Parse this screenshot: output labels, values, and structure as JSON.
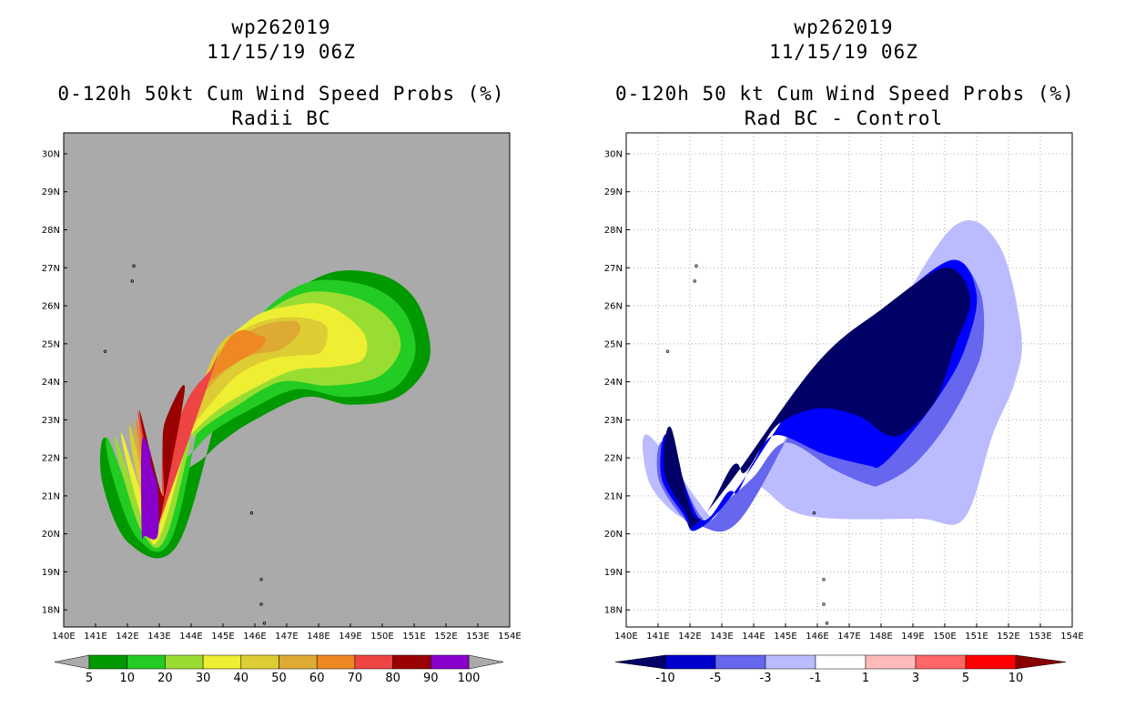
{
  "chart_data": [
    {
      "type": "filled-contour-map",
      "storm_id": "wp262019",
      "datetime": "11/15/19 06Z",
      "title": "0-120h 50kt Cum Wind Speed Probs (%)",
      "subtitle": "Radii BC",
      "x_ticks": [
        "140E",
        "141E",
        "142E",
        "143E",
        "144E",
        "145E",
        "146E",
        "147E",
        "148E",
        "149E",
        "150E",
        "151E",
        "152E",
        "153E",
        "154E"
      ],
      "y_ticks": [
        "18N",
        "19N",
        "20N",
        "21N",
        "22N",
        "23N",
        "24N",
        "25N",
        "26N",
        "27N",
        "28N",
        "29N",
        "30N"
      ],
      "xlim": [
        140,
        154
      ],
      "ylim": [
        17.55,
        30.55
      ],
      "grid": false,
      "background": "#aaaaaa",
      "colorbar": {
        "labels": [
          "5",
          "10",
          "20",
          "30",
          "40",
          "50",
          "60",
          "70",
          "80",
          "90",
          "100"
        ],
        "colors": [
          "#009900",
          "#22cc22",
          "#99dd33",
          "#eeee33",
          "#ddcc33",
          "#ddaa33",
          "#ee8822",
          "#ee4444",
          "#990000",
          "#8800cc"
        ],
        "under_color": "#aaaaaa",
        "over_color": "#aaaaaa"
      },
      "levels": [
        {
          "value": 5,
          "color": "#009900",
          "lon_path": [
            141.35,
            141.2,
            142.05,
            143.6,
            145.2,
            146.8,
            148.3,
            149.8,
            150.8,
            151.35,
            151.45,
            150.5,
            149.0,
            147.6,
            146.0,
            145.0,
            144.4,
            143.7,
            143.2,
            142.4
          ],
          "lat_path": [
            22.5,
            21.4,
            19.75,
            19.75,
            24.1,
            26.0,
            26.85,
            26.85,
            26.4,
            25.6,
            24.5,
            23.6,
            23.4,
            23.6,
            23.0,
            22.45,
            22.0,
            21.5,
            20.3,
            20.1
          ]
        },
        {
          "value": 10,
          "color": "#22cc22",
          "lon_path": [
            141.4,
            141.5,
            142.3,
            143.4,
            144.6,
            146.1,
            147.6,
            149.2,
            150.3,
            150.9,
            151.0,
            150.3,
            148.8,
            147.3,
            145.7,
            144.7,
            144.1,
            143.5,
            143.1,
            142.5
          ],
          "lat_path": [
            22.5,
            21.6,
            19.9,
            19.9,
            24.0,
            25.7,
            26.6,
            26.6,
            26.2,
            25.5,
            24.6,
            23.8,
            23.6,
            23.8,
            23.2,
            22.7,
            22.2,
            21.6,
            20.3,
            20.2
          ]
        },
        {
          "value": 20,
          "color": "#99dd33",
          "lon_path": [
            141.65,
            141.8,
            142.5,
            143.25,
            144.5,
            145.9,
            147.4,
            148.8,
            149.9,
            150.5,
            150.5,
            149.8,
            148.3,
            146.8,
            145.3,
            144.4,
            143.8,
            143.3,
            143.0,
            142.6
          ],
          "lat_path": [
            22.5,
            21.7,
            20.0,
            20.0,
            24.0,
            25.5,
            26.3,
            26.3,
            25.9,
            25.3,
            24.7,
            24.1,
            23.9,
            24.0,
            23.3,
            22.8,
            22.3,
            21.8,
            20.4,
            20.3
          ]
        },
        {
          "value": 30,
          "color": "#eeee33",
          "lon_path": [
            141.85,
            142.0,
            142.6,
            143.1,
            144.5,
            145.8,
            147.1,
            148.3,
            149.4,
            149.4,
            148.5,
            147.2,
            145.9,
            144.9,
            144.1,
            143.55,
            143.2,
            142.8
          ],
          "lat_path": [
            22.6,
            21.8,
            20.1,
            20.1,
            24.2,
            25.6,
            26.0,
            26.0,
            25.3,
            24.6,
            24.4,
            24.3,
            23.8,
            23.3,
            22.7,
            22.1,
            21.3,
            20.3
          ]
        },
        {
          "value": 40,
          "color": "#ddcc33",
          "lon_path": [
            142.1,
            142.2,
            142.7,
            143.0,
            144.6,
            145.7,
            147.0,
            148.2,
            148.1,
            147.4,
            146.5,
            145.5,
            144.8,
            144.1,
            143.5,
            143.1,
            142.9
          ],
          "lat_path": [
            22.8,
            21.9,
            20.2,
            20.2,
            24.5,
            25.4,
            25.7,
            25.5,
            24.8,
            24.7,
            24.6,
            24.2,
            23.6,
            22.9,
            22.2,
            21.3,
            20.4
          ]
        },
        {
          "value": 50,
          "color": "#ddaa33",
          "lon_path": [
            142.2,
            142.35,
            142.8,
            143.0,
            144.8,
            146.0,
            147.2,
            147.4,
            146.8,
            145.9,
            145.1,
            144.4,
            143.8,
            143.3,
            143.1,
            142.95
          ],
          "lat_path": [
            22.9,
            22.0,
            20.3,
            20.3,
            24.6,
            25.4,
            25.6,
            25.3,
            24.85,
            24.7,
            24.3,
            23.7,
            23.1,
            22.4,
            21.5,
            20.5
          ]
        },
        {
          "value": 60,
          "color": "#ee8822",
          "lon_path": [
            142.3,
            142.45,
            142.85,
            143.0,
            145.0,
            146.2,
            146.2,
            145.4,
            144.7,
            144.0,
            143.5,
            143.1,
            143.05
          ],
          "lat_path": [
            23.0,
            22.0,
            20.3,
            20.3,
            24.9,
            25.2,
            24.9,
            24.5,
            24.1,
            23.5,
            22.6,
            21.7,
            20.6
          ]
        },
        {
          "value": 70,
          "color": "#ee4444",
          "lon_path": [
            142.35,
            142.5,
            142.85,
            143.0,
            144.8,
            144.6,
            144.0,
            143.5,
            143.1,
            143.05
          ],
          "lat_path": [
            23.2,
            22.2,
            20.3,
            20.3,
            24.6,
            24.3,
            23.7,
            22.8,
            22.0,
            20.8
          ]
        },
        {
          "value": 80,
          "color": "#990000",
          "lon_path": [
            142.4,
            142.55,
            142.85,
            143.0,
            143.8,
            143.2,
            143.1,
            143.1
          ],
          "lat_path": [
            23.2,
            22.3,
            20.3,
            20.3,
            23.8,
            23.0,
            22.2,
            21.0
          ]
        },
        {
          "value": 90,
          "color": "#8800cc",
          "lon_path": [
            142.45,
            142.45,
            142.55,
            142.95,
            142.95,
            142.75,
            142.7
          ],
          "lat_path": [
            22.4,
            20.05,
            19.95,
            19.95,
            21.2,
            21.8,
            22.2
          ]
        }
      ]
    },
    {
      "type": "filled-contour-map",
      "storm_id": "wp262019",
      "datetime": "11/15/19 06Z",
      "title": "0-120h 50 kt Cum Wind Speed Probs (%)",
      "subtitle": "Rad BC - Control",
      "x_ticks": [
        "140E",
        "141E",
        "142E",
        "143E",
        "144E",
        "145E",
        "146E",
        "147E",
        "148E",
        "149E",
        "150E",
        "151E",
        "152E",
        "153E",
        "154E"
      ],
      "y_ticks": [
        "18N",
        "19N",
        "20N",
        "21N",
        "22N",
        "23N",
        "24N",
        "25N",
        "26N",
        "27N",
        "28N",
        "29N",
        "30N"
      ],
      "xlim": [
        140,
        154
      ],
      "ylim": [
        17.55,
        30.55
      ],
      "grid": true,
      "background": "#ffffff",
      "colorbar": {
        "labels": [
          "-10",
          "-5",
          "-3",
          "-1",
          "1",
          "3",
          "5",
          "10"
        ],
        "colors": [
          "#0000cc",
          "#6666ee",
          "#bbbbff",
          "#ffffff",
          "#ffbbbb",
          "#ff6666",
          "#ff0000"
        ],
        "under_color": "#000066",
        "over_color": "#880000"
      },
      "levels": [
        {
          "value": -1,
          "color": "#bbbbff",
          "lon_path": [
            140.7,
            140.7,
            141.6,
            142.4,
            143.5,
            146.0,
            148.0,
            150.3,
            151.7,
            152.4,
            152.2,
            151.5,
            150.6,
            149.2,
            146.6,
            145.2,
            144.0,
            143.3,
            142.7
          ],
          "lat_path": [
            22.6,
            21.4,
            20.5,
            20.4,
            20.4,
            23.9,
            25.3,
            28.1,
            27.6,
            25.3,
            24.0,
            22.6,
            20.4,
            20.4,
            20.4,
            20.6,
            21.3,
            20.5,
            20.4
          ]
        },
        {
          "value": -3,
          "color": "#6666ee",
          "lon_path": [
            141.2,
            141.0,
            141.7,
            142.3,
            143.6,
            146.0,
            148.0,
            150.2,
            151.1,
            151.2,
            150.8,
            150.0,
            149.0,
            148.0,
            147.6,
            146.5,
            145.0,
            144.0,
            143.2,
            142.4
          ],
          "lat_path": [
            22.4,
            21.5,
            20.5,
            20.2,
            20.4,
            23.9,
            25.8,
            27.1,
            26.4,
            25.0,
            24.0,
            22.8,
            21.8,
            21.3,
            21.3,
            21.7,
            22.4,
            21.5,
            20.9,
            20.4
          ]
        },
        {
          "value": -5,
          "color": "#0000ff",
          "lon_path": [
            141.3,
            141.1,
            141.8,
            142.2,
            143.4,
            146.0,
            148.0,
            150.2,
            151.0,
            150.6,
            149.8,
            148.8,
            148.0,
            147.6,
            146.2,
            144.7,
            144.0,
            143.5,
            143.2,
            142.3
          ],
          "lat_path": [
            22.6,
            21.5,
            20.5,
            20.1,
            21.1,
            24.3,
            25.8,
            27.2,
            26.3,
            24.8,
            23.6,
            22.5,
            21.8,
            21.8,
            22.1,
            22.6,
            21.9,
            21.1,
            21.1,
            20.4
          ]
        },
        {
          "value": -10,
          "color": "#000066",
          "lon_path": [
            141.4,
            141.2,
            141.9,
            142.1,
            143.3,
            146.0,
            148.0,
            150.0,
            150.8,
            150.3,
            149.7,
            148.8,
            148.2,
            147.3,
            146.0,
            144.8,
            144.2,
            143.7,
            143.35,
            142.2
          ],
          "lat_path": [
            22.8,
            21.6,
            20.5,
            20.2,
            21.4,
            24.5,
            25.9,
            27.0,
            26.2,
            24.9,
            23.5,
            22.7,
            22.6,
            23.1,
            23.3,
            22.9,
            22.2,
            21.6,
            21.8,
            20.4
          ]
        }
      ]
    }
  ]
}
